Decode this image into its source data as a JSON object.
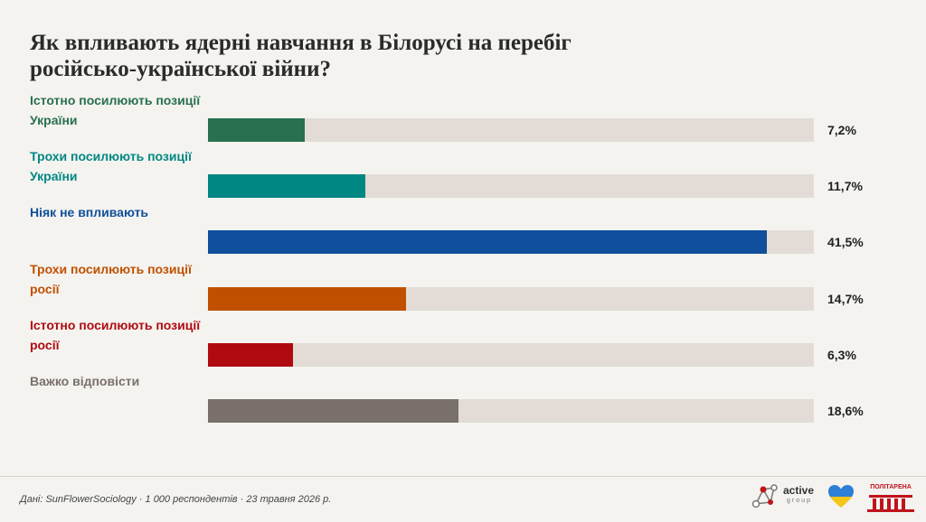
{
  "title": "Як впливають ядерні навчання в Білорусі на перебіг російсько-української війни?",
  "chart_data": {
    "type": "bar",
    "orientation": "horizontal",
    "title": "Як впливають ядерні навчання в Білорусі на перебіг російсько-української війни?",
    "categories": [
      "Істотно посилюють позиції України",
      "Трохи посилюють позиції України",
      "Ніяк не впливають",
      "Трохи посилюють позиції росії",
      "Істотно посилюють позиції росії",
      "Важко відповісти"
    ],
    "values": [
      7.2,
      11.7,
      41.5,
      14.7,
      6.3,
      18.6
    ],
    "value_labels": [
      "7,2%",
      "11,7%",
      "41,5%",
      "14,7%",
      "6,3%",
      "18,6%"
    ],
    "colors": [
      "#287050",
      "#008784",
      "#0f4f9c",
      "#c05000",
      "#b00a10",
      "#7a706b"
    ],
    "label_colors": [
      "#287050",
      "#008784",
      "#0f4f9c",
      "#c05000",
      "#b00a10",
      "#7a706b"
    ],
    "track_color": "#e3dcd6",
    "xlim": [
      0,
      45
    ],
    "grid": false,
    "legend": "none"
  },
  "footer": {
    "source": "Дані: SunFlowerSociology · 1 000 респондентів · 23 травня 2026 р."
  },
  "logos": {
    "active_group_main": "active",
    "active_group_sub": "group",
    "politarena": "ПОЛІТАРЕНА"
  },
  "icons": [
    "network-logo-icon",
    "heart-icon",
    "building-icon"
  ]
}
